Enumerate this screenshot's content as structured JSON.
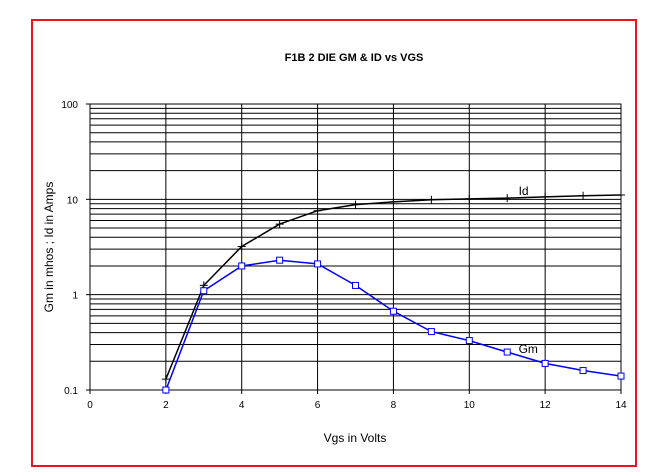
{
  "chart_data": {
    "type": "line",
    "title": "F1B 2 DIE GM & ID vs VGS",
    "xlabel": "Vgs in Volts",
    "ylabel": "Gm in  mhos ;  Id in Amps",
    "xlim": [
      0,
      14
    ],
    "ylim": [
      0.1,
      100
    ],
    "yscale": "log",
    "grid": true,
    "x_ticks": [
      "0",
      "2",
      "4",
      "6",
      "8",
      "10",
      "12",
      "14"
    ],
    "y_ticks": [
      "0.1",
      "1",
      "10",
      "100"
    ],
    "frame_color": "#e8151b",
    "series": [
      {
        "name": "Id",
        "color": "#000000",
        "marker": "plus",
        "x": [
          2,
          3,
          4,
          5,
          6,
          7,
          8,
          9,
          10,
          11,
          12,
          13,
          14
        ],
        "values": [
          0.13,
          1.25,
          3.2,
          5.5,
          7.6,
          8.8,
          9.4,
          9.9,
          10.1,
          10.3,
          10.6,
          10.9,
          11.1
        ]
      },
      {
        "name": "Gm",
        "color": "#0000ff",
        "marker": "square",
        "x": [
          2,
          3,
          4,
          5,
          6,
          7,
          8,
          9,
          10,
          11,
          12,
          13,
          14
        ],
        "values": [
          0.1,
          1.1,
          2.0,
          2.3,
          2.1,
          1.25,
          0.67,
          0.41,
          0.33,
          0.25,
          0.19,
          0.16,
          0.14
        ]
      }
    ]
  }
}
